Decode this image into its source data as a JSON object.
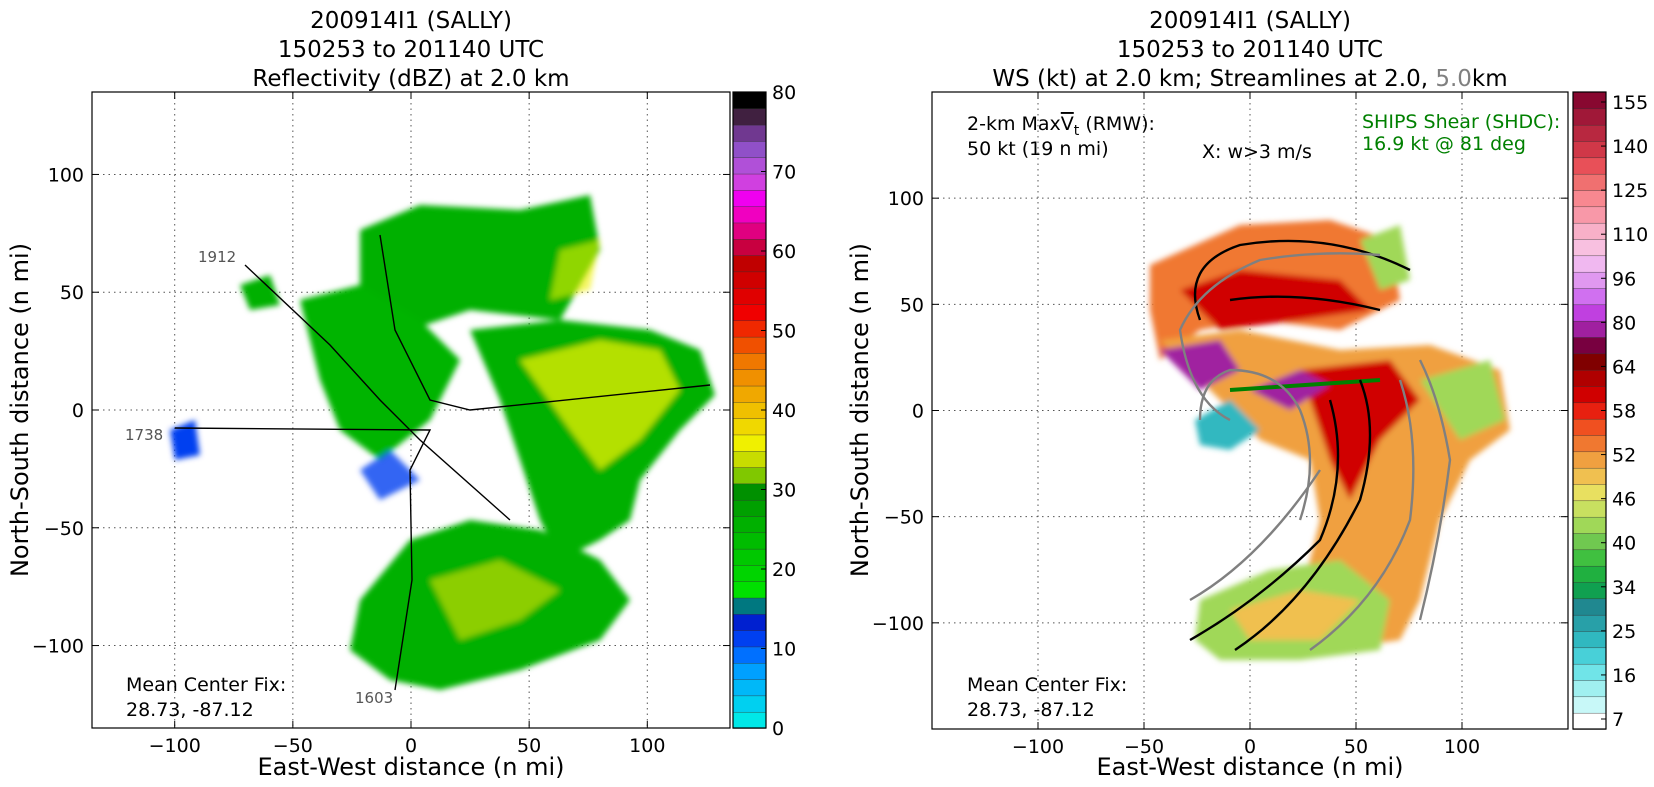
{
  "chart_data": [
    {
      "type": "heatmap",
      "title_lines": [
        "200914I1 (SALLY)",
        "150253 to 201140 UTC",
        "Reflectivity (dBZ) at 2.0 km"
      ],
      "xlabel": "East-West distance (n mi)",
      "ylabel": "North-South distance (n mi)",
      "xlim": [
        -135,
        135
      ],
      "ylim": [
        -135,
        135
      ],
      "xticks": [
        -100,
        -50,
        0,
        50,
        100
      ],
      "yticks": [
        -100,
        -50,
        0,
        50,
        100
      ],
      "xtick_labels": [
        "−100",
        "−50",
        "0",
        "50",
        "100"
      ],
      "ytick_labels": [
        "−100",
        "−50",
        "0",
        "50",
        "100"
      ],
      "grid": true,
      "annotation_lines": [
        "Mean Center Fix:",
        "28.73, -87.12"
      ],
      "flight_track_labels": [
        "1912",
        "1738",
        "1603"
      ],
      "colorbar": {
        "ticks": [
          0,
          10,
          20,
          30,
          40,
          50,
          60,
          70,
          80
        ],
        "tick_labels": [
          "0",
          "10",
          "20",
          "30",
          "40",
          "50",
          "60",
          "70",
          "80"
        ],
        "range": [
          0,
          80
        ],
        "colors": [
          "#00e8e8",
          "#00d0f0",
          "#00b8f8",
          "#00a0ff",
          "#0070ff",
          "#0040f0",
          "#0020d0",
          "#007880",
          "#00e000",
          "#00d400",
          "#00c800",
          "#00bc00",
          "#00b000",
          "#00a000",
          "#009000",
          "#80c800",
          "#c8dc00",
          "#f0f000",
          "#f0d800",
          "#f0c000",
          "#f0a800",
          "#f09000",
          "#f07800",
          "#f05000",
          "#f02800",
          "#f00000",
          "#e00000",
          "#d00000",
          "#c00000",
          "#c80040",
          "#e00080",
          "#f000c0",
          "#f000f0",
          "#d040e0",
          "#b050d8",
          "#9050c8",
          "#703890",
          "#402040",
          "#000000"
        ]
      }
    },
    {
      "type": "heatmap",
      "title_lines": [
        "200914I1 (SALLY)",
        "150253 to 201140 UTC"
      ],
      "title_line3": {
        "prefix": "WS (kt) at 2.0 km; Streamlines at 2.0, ",
        "highlight": "5.0",
        "suffix": "km"
      },
      "xlabel": "East-West distance (n mi)",
      "ylabel": "North-South distance (n mi)",
      "xlim": [
        -150,
        150
      ],
      "ylim": [
        -150,
        150
      ],
      "xticks": [
        -100,
        -50,
        0,
        50,
        100
      ],
      "yticks": [
        -100,
        -50,
        0,
        50,
        100
      ],
      "xtick_labels": [
        "−100",
        "−50",
        "0",
        "50",
        "100"
      ],
      "ytick_labels": [
        "−100",
        "−50",
        "0",
        "50",
        "100"
      ],
      "grid": true,
      "maxvt_label": {
        "prefix": "2-km Max",
        "v": "V",
        "sub": "t",
        "suffix": " (RMW):"
      },
      "maxvt_value": "50 kt (19 n mi)",
      "w_marker_label": "X: w>3 m/s",
      "shear_lines": [
        "SHIPS Shear (SHDC):",
        "16.9 kt @ 81 deg"
      ],
      "shear_color": "#008000",
      "annotation_lines": [
        "Mean Center Fix:",
        "28.73, -87.12"
      ],
      "colorbar": {
        "ticks": [
          7,
          16,
          25,
          34,
          40,
          46,
          52,
          58,
          64,
          80,
          96,
          110,
          125,
          140,
          155
        ],
        "tick_labels": [
          "7",
          "16",
          "25",
          "34",
          "40",
          "46",
          "52",
          "58",
          "64",
          "80",
          "96",
          "110",
          "125",
          "140",
          "155"
        ],
        "colors": [
          "#ffffff",
          "#c8f8f8",
          "#a0f0f0",
          "#70e4e8",
          "#48d0d8",
          "#30b8c0",
          "#28a0a8",
          "#208890",
          "#10a050",
          "#20b040",
          "#40c040",
          "#70c850",
          "#a0d858",
          "#c8e060",
          "#e8e060",
          "#f0c050",
          "#f0a040",
          "#f07830",
          "#f05020",
          "#e82010",
          "#d00000",
          "#b00000",
          "#800000",
          "#780040",
          "#a020a0",
          "#c040e0",
          "#d070f0",
          "#e098f0",
          "#f0b8f0",
          "#f8c0e0",
          "#f8b0c8",
          "#f898a8",
          "#f88890",
          "#f07070",
          "#e85058",
          "#d03848",
          "#b82840",
          "#a01838",
          "#880830"
        ]
      }
    }
  ]
}
